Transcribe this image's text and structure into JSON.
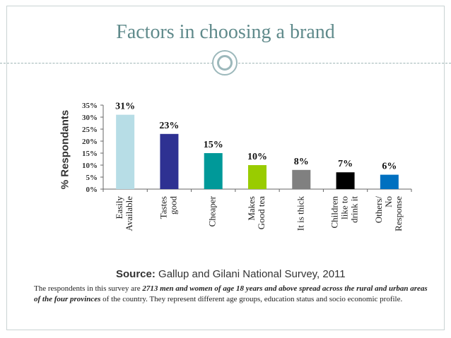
{
  "title": "Factors in choosing a brand",
  "source_prefix": "Source:",
  "source_text": "Gallup and Gilani National Survey, 2011",
  "note": {
    "part1": "The respondents in this survey are ",
    "bold": "2713 men and women of age 18 years and above spread across the rural and urban areas of the four provinces",
    "part2": " of the country. They represent different age groups, education status and socio economic profile."
  },
  "chart_data": {
    "type": "bar",
    "ylabel": "% Respondants",
    "ylim": [
      0,
      35
    ],
    "yticks": [
      "0%",
      "5%",
      "10%",
      "15%",
      "20%",
      "25%",
      "30%",
      "35%"
    ],
    "ytick_values": [
      0,
      5,
      10,
      15,
      20,
      25,
      30,
      35
    ],
    "categories": [
      [
        "Easily",
        "Available"
      ],
      [
        "Tastes",
        "good"
      ],
      [
        "Cheaper"
      ],
      [
        "Makes",
        "Good tea"
      ],
      [
        "It is thick"
      ],
      [
        "Children",
        "like to",
        "drink it"
      ],
      [
        "Others/",
        "No",
        "Response"
      ]
    ],
    "values": [
      31,
      23,
      15,
      10,
      8,
      7,
      6
    ],
    "data_labels": [
      "31%",
      "23%",
      "15%",
      "10%",
      "8%",
      "7%",
      "6%"
    ],
    "colors": [
      "#b7dde6",
      "#2e3192",
      "#009999",
      "#99cc00",
      "#808080",
      "#000000",
      "#0070c0"
    ],
    "grid": false,
    "legend": "none"
  }
}
